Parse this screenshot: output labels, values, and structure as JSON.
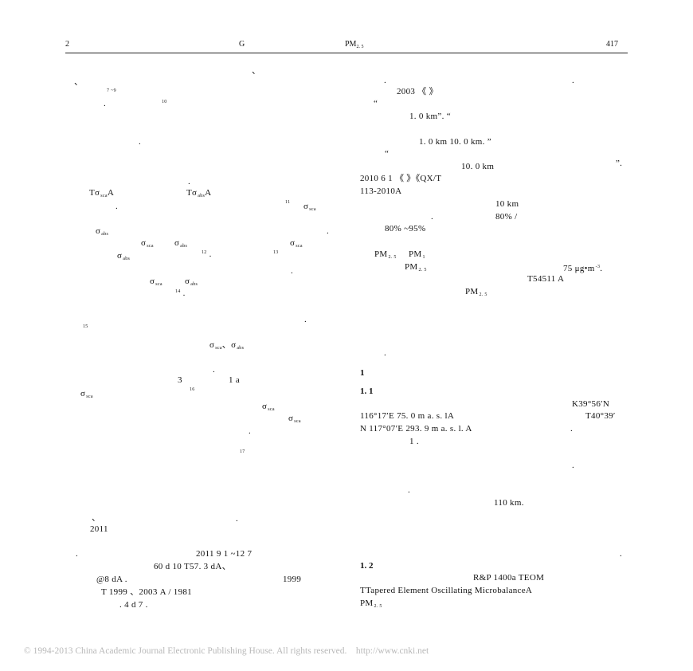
{
  "header": {
    "left": "2",
    "center_letter": "G",
    "pm_label": "PM",
    "pm_sub": "2. 5",
    "page_number": "417"
  },
  "footer": {
    "copyright": "© 1994-2013 China Academic Journal Electronic Publishing House. All rights reserved.",
    "url": "http://www.cnki.net"
  },
  "sections": {
    "s1": "1",
    "s1_1": "1. 1",
    "s1_2": "1. 2"
  },
  "left_column": {
    "ref_7_9": "7 ~9",
    "ref_10": "10",
    "t_sca_a": "Tσ",
    "t_sca_b": "A",
    "t_abs_a": "Tσ",
    "t_abs_b": "A",
    "ref_11": "11",
    "ref_12": "12",
    "ref_13": "13",
    "ref_14": "14",
    "ref_15": "15",
    "ref_16": "16",
    "ref_17": "17",
    "three": "3",
    "one_a": "1  a",
    "year_2011": "2011",
    "line_2011": "2011      9    1     ~12     7",
    "line_60d": "60 d          10           T57. 3 dA、",
    "line_48": "@8 dA          .",
    "line_1999": "1999",
    "line_t1999": "T     1999      、2003            A  /              1981",
    "line_4d": ".         4 d                                           7    ."
  },
  "right_column": {
    "r1": "2003              《                                  》",
    "r2": "1. 0 km”.                       “",
    "r3": "1. 0 km               10. 0 km. ”",
    "r4": "10. 0 km",
    "r4b": "”.",
    "r5": "2010      6      1                   《                             》《QX/T",
    "r6": "113-2010A",
    "r7": "10 km",
    "r8": "80%                  /",
    "r9": "80%  ~95%",
    "r10_a": "PM",
    "r10_b": "PM",
    "r11": "PM",
    "r11_val": "75  μg•m",
    "r11_exp": "-3",
    "r12": "T54511       A",
    "r13": "PM",
    "k_line": "K39°56′N",
    "coord1": "116°17′E   75. 0 m a. s. lA",
    "coord1b": "T40°39′",
    "coord2": "N   117°07′E   293. 9 m a. s. l. A",
    "one_dot": "1       .",
    "km110": "110  km.",
    "rp": "R&P                          1400a TEOM",
    "teom": "TTapered  Element  Oscillating  MicrobalanceA",
    "pm_end": "PM"
  },
  "subscripts": {
    "sca": "sca",
    "abs": "abs",
    "pm25": "2. 5",
    "pm1": "1"
  }
}
